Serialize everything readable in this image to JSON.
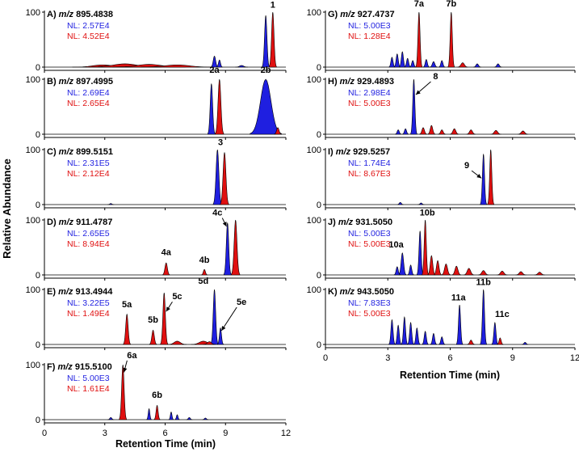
{
  "figure": {
    "ylabel": "Relative Abundance",
    "xlabel_left": "Retention Time (min)",
    "xlabel_right": "Retention Time (min)",
    "blue": "#1f1fe0",
    "red": "#e01010",
    "nl_prefix": "NL: ",
    "x_ticks": [
      0,
      3,
      6,
      9,
      12
    ],
    "y_ticks": [
      0,
      100
    ]
  },
  "chart_data": [
    {
      "type": "area",
      "column": "left",
      "row": 0,
      "letter": "A)",
      "mz_label": "m/z",
      "mz": "895.4838",
      "xlim": [
        0,
        12
      ],
      "ylim": [
        0,
        100
      ],
      "nl": [
        {
          "series": "blue",
          "value": "2.57E4"
        },
        {
          "series": "red",
          "value": "4.52E4"
        }
      ],
      "peaks": [
        {
          "series": "red",
          "rt": 2.9,
          "h": 4,
          "w": 0.5
        },
        {
          "series": "red",
          "rt": 4.0,
          "h": 6,
          "w": 0.6
        },
        {
          "series": "red",
          "rt": 5.2,
          "h": 5,
          "w": 0.6
        },
        {
          "series": "red",
          "rt": 6.6,
          "h": 4,
          "w": 0.6
        },
        {
          "series": "blue",
          "rt": 8.45,
          "h": 20,
          "w": 0.06
        },
        {
          "series": "blue",
          "rt": 8.7,
          "h": 13,
          "w": 0.05
        },
        {
          "series": "blue",
          "rt": 11.0,
          "h": 94,
          "w": 0.06
        },
        {
          "series": "red",
          "rt": 11.35,
          "h": 100,
          "w": 0.06
        },
        {
          "series": "blue",
          "rt": 9.8,
          "h": 3,
          "w": 0.1
        }
      ],
      "labels": [
        {
          "text": "1",
          "rt": 11.35,
          "y": 108,
          "arrow": false
        }
      ]
    },
    {
      "type": "area",
      "column": "left",
      "row": 1,
      "letter": "B)",
      "mz_label": "m/z",
      "mz": "897.4995",
      "xlim": [
        0,
        12
      ],
      "ylim": [
        0,
        100
      ],
      "nl": [
        {
          "series": "blue",
          "value": "2.69E4"
        },
        {
          "series": "red",
          "value": "2.65E4"
        }
      ],
      "peaks": [
        {
          "series": "blue",
          "rt": 8.3,
          "h": 92,
          "w": 0.06
        },
        {
          "series": "red",
          "rt": 8.7,
          "h": 100,
          "w": 0.07
        },
        {
          "series": "blue",
          "rt": 11.0,
          "h": 100,
          "w": 0.26
        },
        {
          "series": "red",
          "rt": 11.6,
          "h": 12,
          "w": 0.06
        }
      ],
      "labels": [
        {
          "text": "2a",
          "rt": 8.45,
          "y": 112,
          "arrow": false
        },
        {
          "text": "2b",
          "rt": 11.0,
          "y": 112,
          "arrow": false
        }
      ]
    },
    {
      "type": "area",
      "column": "left",
      "row": 2,
      "letter": "C)",
      "mz_label": "m/z",
      "mz": "899.5151",
      "xlim": [
        0,
        12
      ],
      "ylim": [
        0,
        100
      ],
      "nl": [
        {
          "series": "blue",
          "value": "2.31E5"
        },
        {
          "series": "red",
          "value": "2.12E4"
        }
      ],
      "peaks": [
        {
          "series": "blue",
          "rt": 8.6,
          "h": 100,
          "w": 0.07
        },
        {
          "series": "red",
          "rt": 8.95,
          "h": 95,
          "w": 0.07
        },
        {
          "series": "blue",
          "rt": 3.3,
          "h": 2,
          "w": 0.05
        }
      ],
      "labels": [
        {
          "text": "3",
          "rt": 8.75,
          "y": 108,
          "arrow": false
        }
      ]
    },
    {
      "type": "area",
      "column": "left",
      "row": 3,
      "letter": "D)",
      "mz_label": "m/z",
      "mz": "911.4787",
      "xlim": [
        0,
        12
      ],
      "ylim": [
        0,
        100
      ],
      "nl": [
        {
          "series": "blue",
          "value": "2.65E5"
        },
        {
          "series": "red",
          "value": "8.94E4"
        }
      ],
      "peaks": [
        {
          "series": "red",
          "rt": 6.05,
          "h": 22,
          "w": 0.06
        },
        {
          "series": "red",
          "rt": 7.95,
          "h": 10,
          "w": 0.05
        },
        {
          "series": "blue",
          "rt": 9.1,
          "h": 95,
          "w": 0.06
        },
        {
          "series": "red",
          "rt": 9.5,
          "h": 100,
          "w": 0.07
        }
      ],
      "labels": [
        {
          "text": "4a",
          "rt": 6.05,
          "y": 36,
          "arrow": false
        },
        {
          "text": "4b",
          "rt": 7.95,
          "y": 22,
          "arrow": false
        },
        {
          "text": "4c",
          "rt": 8.6,
          "y": 108,
          "arrow": true,
          "tip_rt": 9.05,
          "tip_y": 88
        }
      ]
    },
    {
      "type": "area",
      "column": "left",
      "row": 4,
      "letter": "E)",
      "mz_label": "m/z",
      "mz": "913.4944",
      "xlim": [
        0,
        12
      ],
      "ylim": [
        0,
        100
      ],
      "nl": [
        {
          "series": "blue",
          "value": "3.22E5"
        },
        {
          "series": "red",
          "value": "1.49E4"
        }
      ],
      "peaks": [
        {
          "series": "red",
          "rt": 4.1,
          "h": 55,
          "w": 0.06
        },
        {
          "series": "red",
          "rt": 5.4,
          "h": 26,
          "w": 0.06
        },
        {
          "series": "red",
          "rt": 5.95,
          "h": 94,
          "w": 0.06
        },
        {
          "series": "red",
          "rt": 6.6,
          "h": 6,
          "w": 0.15
        },
        {
          "series": "red",
          "rt": 7.9,
          "h": 6,
          "w": 0.2
        },
        {
          "series": "blue",
          "rt": 8.45,
          "h": 100,
          "w": 0.06
        },
        {
          "series": "blue",
          "rt": 8.75,
          "h": 30,
          "w": 0.05
        },
        {
          "series": "red",
          "rt": 8.2,
          "h": 5,
          "w": 0.1
        }
      ],
      "labels": [
        {
          "text": "5a",
          "rt": 4.1,
          "y": 68,
          "arrow": false
        },
        {
          "text": "5b",
          "rt": 5.4,
          "y": 40,
          "arrow": false
        },
        {
          "text": "5c",
          "rt": 6.6,
          "y": 82,
          "arrow": true,
          "tip_rt": 6.05,
          "tip_y": 60
        },
        {
          "text": "5d",
          "rt": 7.9,
          "y": 110,
          "arrow": false
        },
        {
          "text": "5e",
          "rt": 9.8,
          "y": 72,
          "arrow": true,
          "tip_rt": 8.8,
          "tip_y": 25
        }
      ]
    },
    {
      "type": "area",
      "column": "left",
      "row": 5,
      "letter": "F)",
      "mz_label": "m/z",
      "mz": "915.5100",
      "xlim": [
        0,
        12
      ],
      "ylim": [
        0,
        100
      ],
      "nl": [
        {
          "series": "blue",
          "value": "5.00E3"
        },
        {
          "series": "red",
          "value": "1.61E4"
        }
      ],
      "peaks": [
        {
          "series": "red",
          "rt": 3.9,
          "h": 100,
          "w": 0.06
        },
        {
          "series": "blue",
          "rt": 3.3,
          "h": 4,
          "w": 0.05
        },
        {
          "series": "blue",
          "rt": 5.2,
          "h": 20,
          "w": 0.04
        },
        {
          "series": "red",
          "rt": 5.6,
          "h": 26,
          "w": 0.05
        },
        {
          "series": "blue",
          "rt": 6.3,
          "h": 14,
          "w": 0.04
        },
        {
          "series": "blue",
          "rt": 6.6,
          "h": 9,
          "w": 0.04
        },
        {
          "series": "blue",
          "rt": 7.2,
          "h": 4,
          "w": 0.05
        },
        {
          "series": "blue",
          "rt": 8.0,
          "h": 3,
          "w": 0.05
        }
      ],
      "labels": [
        {
          "text": "6a",
          "rt": 4.35,
          "y": 112,
          "arrow": true,
          "tip_rt": 3.95,
          "tip_y": 86
        },
        {
          "text": "6b",
          "rt": 5.6,
          "y": 40,
          "arrow": false
        }
      ]
    },
    {
      "type": "area",
      "column": "right",
      "row": 0,
      "letter": "G)",
      "mz_label": "m/z",
      "mz": "927.4737",
      "xlim": [
        0,
        12
      ],
      "ylim": [
        0,
        100
      ],
      "nl": [
        {
          "series": "blue",
          "value": "5.00E3"
        },
        {
          "series": "red",
          "value": "1.28E4"
        }
      ],
      "peaks": [
        {
          "series": "blue",
          "rt": 3.2,
          "h": 18,
          "w": 0.05
        },
        {
          "series": "blue",
          "rt": 3.45,
          "h": 24,
          "w": 0.05
        },
        {
          "series": "blue",
          "rt": 3.7,
          "h": 28,
          "w": 0.05
        },
        {
          "series": "blue",
          "rt": 3.95,
          "h": 16,
          "w": 0.05
        },
        {
          "series": "blue",
          "rt": 4.2,
          "h": 12,
          "w": 0.05
        },
        {
          "series": "red",
          "rt": 4.5,
          "h": 100,
          "w": 0.05
        },
        {
          "series": "blue",
          "rt": 4.85,
          "h": 14,
          "w": 0.05
        },
        {
          "series": "blue",
          "rt": 5.2,
          "h": 10,
          "w": 0.06
        },
        {
          "series": "blue",
          "rt": 5.6,
          "h": 12,
          "w": 0.05
        },
        {
          "series": "red",
          "rt": 6.05,
          "h": 100,
          "w": 0.05
        },
        {
          "series": "red",
          "rt": 6.6,
          "h": 8,
          "w": 0.08
        },
        {
          "series": "blue",
          "rt": 7.3,
          "h": 6,
          "w": 0.06
        },
        {
          "series": "blue",
          "rt": 8.3,
          "h": 6,
          "w": 0.06
        }
      ],
      "labels": [
        {
          "text": "7a",
          "rt": 4.5,
          "y": 110,
          "arrow": false
        },
        {
          "text": "7b",
          "rt": 6.05,
          "y": 110,
          "arrow": false
        }
      ]
    },
    {
      "type": "area",
      "column": "right",
      "row": 1,
      "letter": "H)",
      "mz_label": "m/z",
      "mz": "929.4893",
      "xlim": [
        0,
        12
      ],
      "ylim": [
        0,
        100
      ],
      "nl": [
        {
          "series": "blue",
          "value": "2.98E4"
        },
        {
          "series": "red",
          "value": "5.00E3"
        }
      ],
      "peaks": [
        {
          "series": "blue",
          "rt": 4.25,
          "h": 100,
          "w": 0.05
        },
        {
          "series": "blue",
          "rt": 3.5,
          "h": 8,
          "w": 0.05
        },
        {
          "series": "blue",
          "rt": 3.85,
          "h": 10,
          "w": 0.05
        },
        {
          "series": "red",
          "rt": 4.7,
          "h": 12,
          "w": 0.06
        },
        {
          "series": "red",
          "rt": 5.1,
          "h": 16,
          "w": 0.06
        },
        {
          "series": "red",
          "rt": 5.6,
          "h": 8,
          "w": 0.06
        },
        {
          "series": "red",
          "rt": 6.2,
          "h": 10,
          "w": 0.07
        },
        {
          "series": "red",
          "rt": 7.0,
          "h": 8,
          "w": 0.07
        },
        {
          "series": "red",
          "rt": 8.2,
          "h": 7,
          "w": 0.08
        },
        {
          "series": "red",
          "rt": 9.5,
          "h": 6,
          "w": 0.08
        }
      ],
      "labels": [
        {
          "text": "8",
          "rt": 5.3,
          "y": 100,
          "arrow": true,
          "tip_rt": 4.35,
          "tip_y": 72
        }
      ]
    },
    {
      "type": "area",
      "column": "right",
      "row": 2,
      "letter": "I)",
      "mz_label": "m/z",
      "mz": "929.5257",
      "xlim": [
        0,
        12
      ],
      "ylim": [
        0,
        100
      ],
      "nl": [
        {
          "series": "blue",
          "value": "1.74E4"
        },
        {
          "series": "red",
          "value": "8.67E3"
        }
      ],
      "peaks": [
        {
          "series": "blue",
          "rt": 7.6,
          "h": 92,
          "w": 0.05
        },
        {
          "series": "red",
          "rt": 7.95,
          "h": 100,
          "w": 0.05
        },
        {
          "series": "blue",
          "rt": 3.6,
          "h": 4,
          "w": 0.05
        },
        {
          "series": "blue",
          "rt": 4.6,
          "h": 3,
          "w": 0.05
        }
      ],
      "labels": [
        {
          "text": "9",
          "rt": 6.8,
          "y": 66,
          "arrow": true,
          "tip_rt": 7.5,
          "tip_y": 48
        }
      ]
    },
    {
      "type": "area",
      "column": "right",
      "row": 3,
      "letter": "J)",
      "mz_label": "m/z",
      "mz": "931.5050",
      "xlim": [
        0,
        12
      ],
      "ylim": [
        0,
        100
      ],
      "nl": [
        {
          "series": "blue",
          "value": "5.00E3"
        },
        {
          "series": "red",
          "value": "5.00E3"
        }
      ],
      "peaks": [
        {
          "series": "blue",
          "rt": 3.7,
          "h": 40,
          "w": 0.06
        },
        {
          "series": "blue",
          "rt": 3.45,
          "h": 15,
          "w": 0.05
        },
        {
          "series": "blue",
          "rt": 4.1,
          "h": 18,
          "w": 0.05
        },
        {
          "series": "blue",
          "rt": 4.55,
          "h": 80,
          "w": 0.05
        },
        {
          "series": "red",
          "rt": 4.8,
          "h": 100,
          "w": 0.05
        },
        {
          "series": "red",
          "rt": 5.1,
          "h": 35,
          "w": 0.06
        },
        {
          "series": "red",
          "rt": 5.4,
          "h": 26,
          "w": 0.06
        },
        {
          "series": "red",
          "rt": 5.8,
          "h": 20,
          "w": 0.07
        },
        {
          "series": "red",
          "rt": 6.3,
          "h": 16,
          "w": 0.07
        },
        {
          "series": "red",
          "rt": 6.9,
          "h": 12,
          "w": 0.08
        },
        {
          "series": "red",
          "rt": 7.6,
          "h": 8,
          "w": 0.08
        },
        {
          "series": "red",
          "rt": 8.5,
          "h": 7,
          "w": 0.08
        },
        {
          "series": "red",
          "rt": 9.4,
          "h": 6,
          "w": 0.08
        },
        {
          "series": "red",
          "rt": 10.3,
          "h": 5,
          "w": 0.08
        }
      ],
      "labels": [
        {
          "text": "10a",
          "rt": 3.4,
          "y": 50,
          "arrow": false
        },
        {
          "text": "10b",
          "rt": 4.9,
          "y": 108,
          "arrow": false
        }
      ]
    },
    {
      "type": "area",
      "column": "right",
      "row": 4,
      "letter": "K)",
      "mz_label": "m/z",
      "mz": "943.5050",
      "xlim": [
        0,
        12
      ],
      "ylim": [
        0,
        100
      ],
      "nl": [
        {
          "series": "blue",
          "value": "7.83E3"
        },
        {
          "series": "red",
          "value": "5.00E3"
        }
      ],
      "peaks": [
        {
          "series": "blue",
          "rt": 3.2,
          "h": 45,
          "w": 0.05
        },
        {
          "series": "blue",
          "rt": 3.5,
          "h": 35,
          "w": 0.05
        },
        {
          "series": "blue",
          "rt": 3.8,
          "h": 50,
          "w": 0.05
        },
        {
          "series": "blue",
          "rt": 4.1,
          "h": 40,
          "w": 0.05
        },
        {
          "series": "blue",
          "rt": 4.4,
          "h": 30,
          "w": 0.05
        },
        {
          "series": "blue",
          "rt": 4.8,
          "h": 24,
          "w": 0.05
        },
        {
          "series": "blue",
          "rt": 5.2,
          "h": 20,
          "w": 0.05
        },
        {
          "series": "blue",
          "rt": 5.6,
          "h": 14,
          "w": 0.05
        },
        {
          "series": "blue",
          "rt": 6.45,
          "h": 72,
          "w": 0.05
        },
        {
          "series": "blue",
          "rt": 7.6,
          "h": 100,
          "w": 0.05
        },
        {
          "series": "blue",
          "rt": 8.15,
          "h": 40,
          "w": 0.05
        },
        {
          "series": "red",
          "rt": 8.4,
          "h": 12,
          "w": 0.05
        },
        {
          "series": "red",
          "rt": 7.0,
          "h": 8,
          "w": 0.06
        },
        {
          "series": "blue",
          "rt": 9.6,
          "h": 4,
          "w": 0.05
        }
      ],
      "labels": [
        {
          "text": "11a",
          "rt": 6.4,
          "y": 80,
          "arrow": false
        },
        {
          "text": "11b",
          "rt": 7.6,
          "y": 108,
          "arrow": false
        },
        {
          "text": "11c",
          "rt": 8.5,
          "y": 50,
          "arrow": false
        }
      ]
    }
  ]
}
